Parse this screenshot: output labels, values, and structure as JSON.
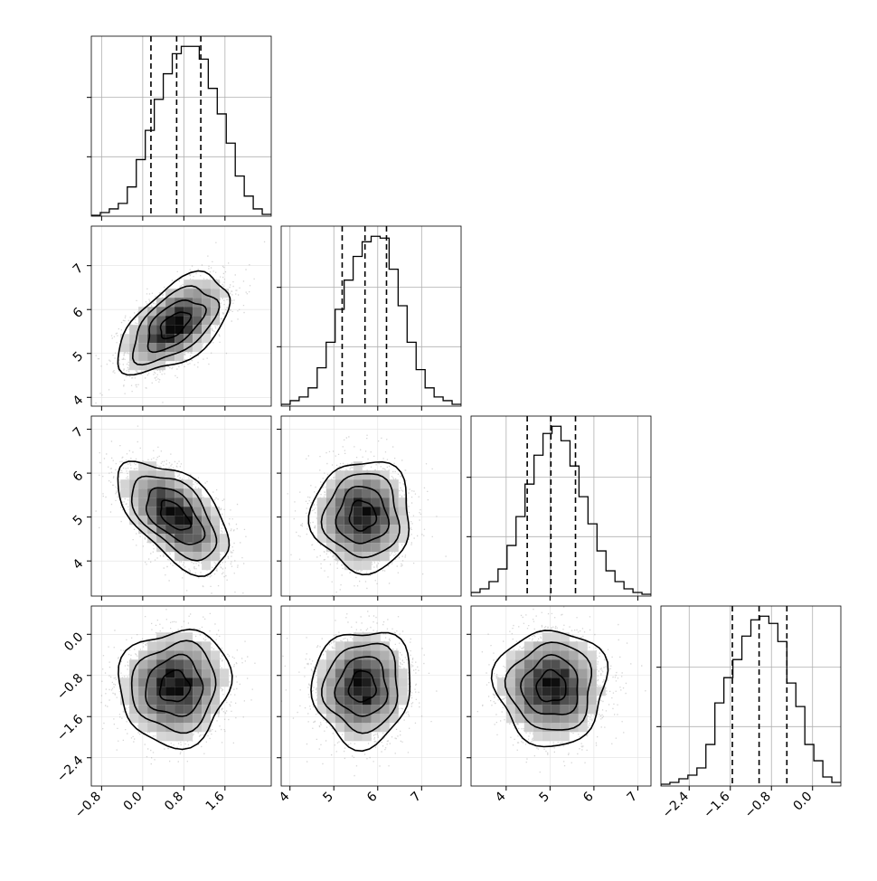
{
  "chart_data": {
    "type": "corner",
    "parameters": 4,
    "axes": [
      {
        "range": [
          -1.0,
          2.5
        ],
        "ticks": [
          -0.8,
          0.0,
          0.8,
          1.6
        ],
        "tick_labels": [
          "−0.8",
          "0.0",
          "0.8",
          "1.6"
        ]
      },
      {
        "range": [
          3.8,
          7.9
        ],
        "ticks": [
          4,
          5,
          6,
          7
        ],
        "tick_labels": [
          "4",
          "5",
          "6",
          "7"
        ]
      },
      {
        "range": [
          3.2,
          7.3
        ],
        "ticks": [
          4,
          5,
          6,
          7
        ],
        "tick_labels": [
          "4",
          "5",
          "6",
          "7"
        ]
      },
      {
        "range": [
          -2.95,
          0.55
        ],
        "ticks": [
          -2.4,
          -1.6,
          -0.8,
          0.0
        ],
        "tick_labels": [
          "−2.4",
          "−1.6",
          "−0.8",
          "0.0"
        ]
      }
    ],
    "histograms": [
      {
        "bin_start": -1.0,
        "bin_width": 0.175,
        "counts": [
          0.5,
          2,
          4,
          7,
          16,
          31,
          47,
          64,
          78,
          89,
          93,
          93,
          86,
          70,
          56,
          40,
          22,
          11,
          4,
          1
        ]
      },
      {
        "bin_start": 3.8,
        "bin_width": 0.205,
        "counts": [
          1,
          3,
          5,
          10,
          21,
          35,
          53,
          69,
          82,
          90,
          93,
          92,
          75,
          55,
          35,
          20,
          10,
          5,
          3,
          1
        ]
      },
      {
        "bin_start": 3.2,
        "bin_width": 0.205,
        "counts": [
          2,
          4,
          8,
          15,
          28,
          44,
          62,
          78,
          90,
          94,
          86,
          72,
          55,
          40,
          25,
          14,
          8,
          4,
          2,
          1
        ]
      },
      {
        "bin_start": -2.95,
        "bin_width": 0.175,
        "counts": [
          1,
          2,
          4,
          6,
          10,
          23,
          46,
          60,
          70,
          83,
          92,
          94,
          90,
          80,
          57,
          44,
          23,
          14,
          5,
          2
        ]
      }
    ],
    "quantiles": [
      [
        0.16,
        0.66,
        1.13
      ],
      [
        5.19,
        5.71,
        6.2
      ],
      [
        4.48,
        5.02,
        5.58
      ],
      [
        -1.56,
        -1.04,
        -0.5
      ]
    ],
    "means": [
      0.62,
      5.65,
      5.03,
      -1.02
    ],
    "stds": [
      0.48,
      0.5,
      0.56,
      0.5
    ],
    "correlations": {
      "1-0": 0.55,
      "2-0": -0.55,
      "2-1": 0.0,
      "3-0": 0.05,
      "3-1": 0.05,
      "3-2": 0.0
    },
    "grid": true,
    "colors": {
      "line": "#000000",
      "grid": "#b0b0b0",
      "scatter": "#888888",
      "density": "#000000"
    }
  }
}
